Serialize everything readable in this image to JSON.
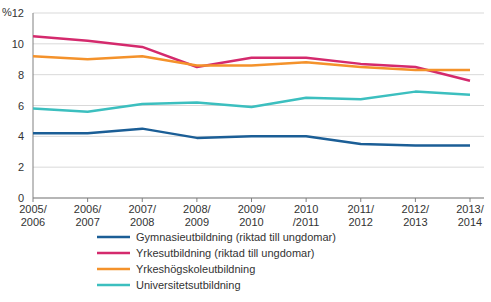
{
  "chart_data": {
    "type": "line",
    "y_label": "%",
    "categories": [
      "2005/\n2006",
      "2006/\n2007",
      "2007/\n2008",
      "2008/\n2009",
      "2009/\n2010",
      "2010\n/2011",
      "2011/\n2012",
      "2012/\n2013",
      "2013/\n2014"
    ],
    "series": [
      {
        "name": "Gymnasieutbildning (riktad till ungdomar)",
        "color": "#1b5e96",
        "values": [
          4.2,
          4.2,
          4.5,
          3.9,
          4.0,
          4.0,
          3.5,
          3.4,
          3.4
        ]
      },
      {
        "name": "Yrkesutbildning (riktad till ungdomar)",
        "color": "#d42a6d",
        "values": [
          10.5,
          10.2,
          9.8,
          8.5,
          9.1,
          9.1,
          8.7,
          8.5,
          7.6
        ]
      },
      {
        "name": "Yrkeshögskoleutbildning",
        "color": "#f4922b",
        "values": [
          9.2,
          9.0,
          9.2,
          8.6,
          8.6,
          8.8,
          8.5,
          8.3,
          8.3
        ]
      },
      {
        "name": "Universitetsutbildning",
        "color": "#3cbfbf",
        "values": [
          5.8,
          5.6,
          6.1,
          6.2,
          5.9,
          6.5,
          6.4,
          6.9,
          6.7
        ]
      }
    ],
    "ylim": [
      0,
      12
    ],
    "yticks": [
      0,
      2,
      4,
      6,
      8,
      10,
      12
    ],
    "grid": true,
    "legend": "bottom"
  }
}
